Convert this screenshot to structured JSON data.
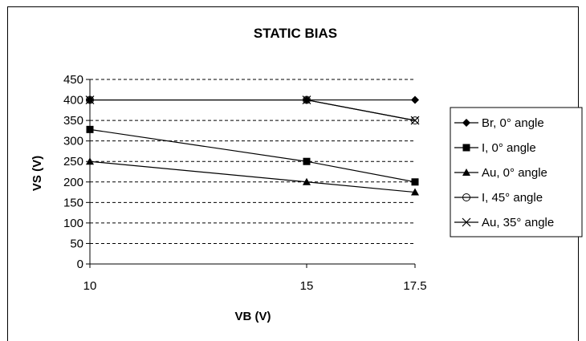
{
  "chart_data": {
    "type": "line",
    "title": "STATIC BIAS",
    "xlabel": "VB (V)",
    "ylabel": "VS (V)",
    "x": [
      10,
      15,
      17.5
    ],
    "x_tick_labels": [
      "10",
      "15",
      "17.5"
    ],
    "ylim": [
      0,
      450
    ],
    "y_ticks": [
      0,
      50,
      100,
      150,
      200,
      250,
      300,
      350,
      400,
      450
    ],
    "grid": "horizontal dashed",
    "legend_position": "right",
    "series": [
      {
        "name": "Br, 0° angle",
        "marker": "diamond",
        "values": [
          400,
          400,
          400
        ]
      },
      {
        "name": "I, 0° angle",
        "marker": "square",
        "values": [
          328,
          250,
          200
        ]
      },
      {
        "name": "Au, 0° angle",
        "marker": "triangle",
        "values": [
          250,
          200,
          175
        ]
      },
      {
        "name": "I, 45° angle",
        "marker": "circle-open",
        "values": [
          400,
          400,
          350
        ]
      },
      {
        "name": "Au, 35° angle",
        "marker": "x",
        "values": [
          400,
          400,
          350
        ]
      }
    ]
  }
}
